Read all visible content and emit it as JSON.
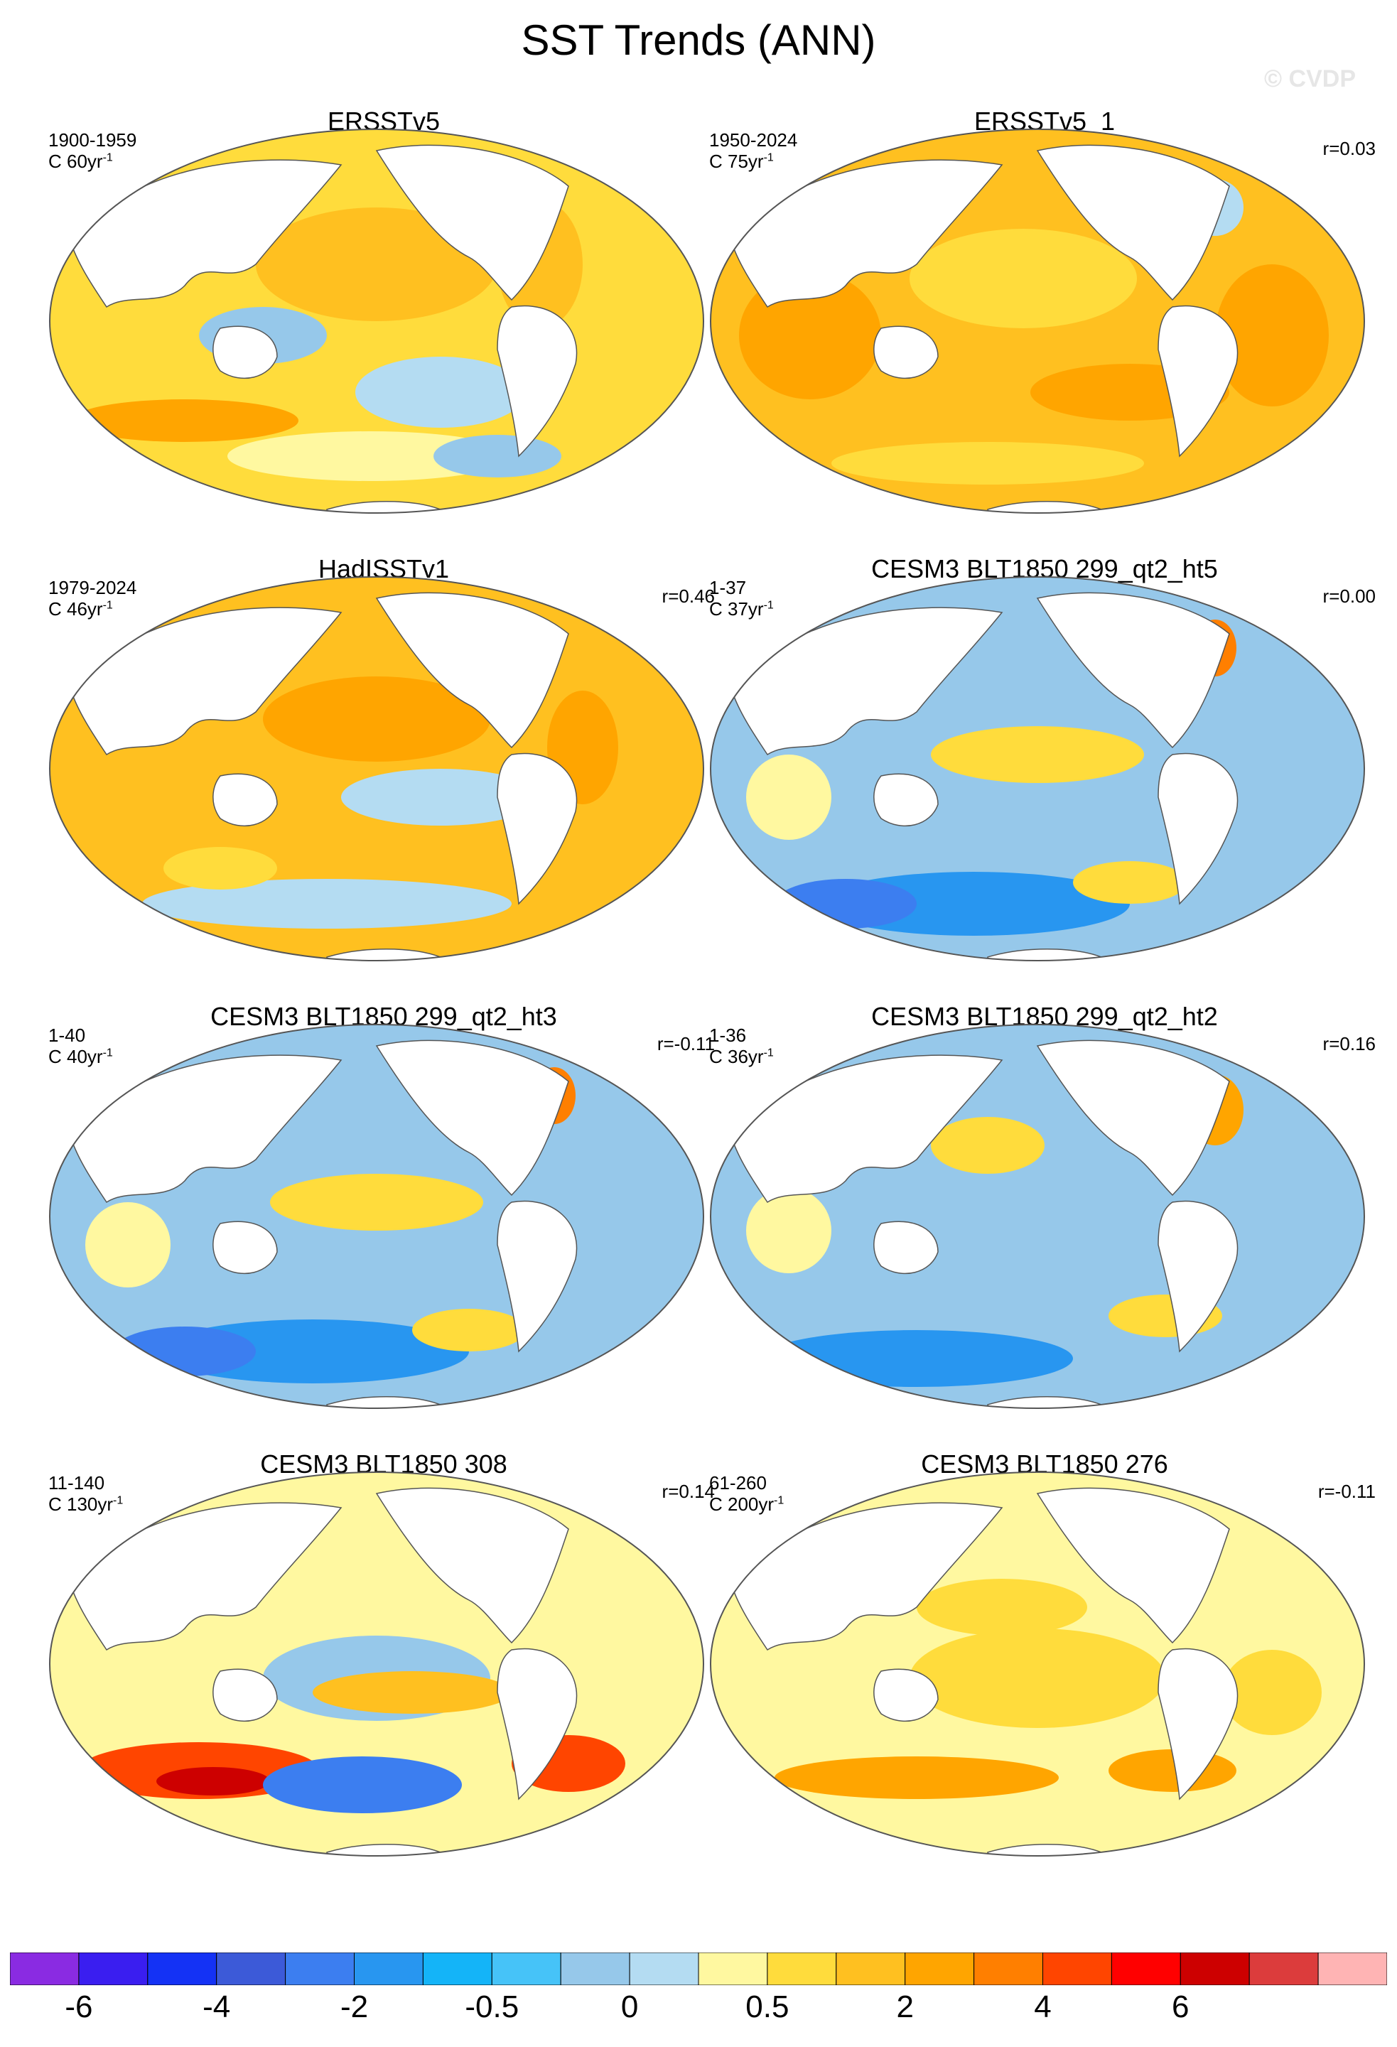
{
  "title": "SST Trends (ANN)",
  "watermark": "© CVDP",
  "chart_data": {
    "type": "heatmap",
    "variable": "SST",
    "season": "ANN",
    "projection": "global map",
    "panels": [
      {
        "title": "ERSSTv5",
        "period": "1900-1959",
        "units": "C 60yr",
        "units_exp": "-1",
        "corr": "",
        "pattern": "warm_obs_mixed"
      },
      {
        "title": "ERSSTv5_1",
        "period": "1950-2024",
        "units": "C 75yr",
        "units_exp": "-1",
        "corr": "r=0.03",
        "pattern": "warm_obs_strong"
      },
      {
        "title": "HadISSTv1",
        "period": "1979-2024",
        "units": "C 46yr",
        "units_exp": "-1",
        "corr": "r=0.46",
        "pattern": "warm_obs_cool_east_pacific"
      },
      {
        "title": "CESM3 BLT1850 299_qt2_ht5",
        "period": "1-37",
        "units": "C 37yr",
        "units_exp": "-1",
        "corr": "r=0.00",
        "pattern": "cool_model_tropical_warm"
      },
      {
        "title": "CESM3 BLT1850 299_qt2_ht3",
        "period": "1-40",
        "units": "C 40yr",
        "units_exp": "-1",
        "corr": "r=-0.11",
        "pattern": "cool_model_tropical_warm"
      },
      {
        "title": "CESM3 BLT1850 299_qt2_ht2",
        "period": "1-36",
        "units": "C 36yr",
        "units_exp": "-1",
        "corr": "r=0.16",
        "pattern": "cool_model"
      },
      {
        "title": "CESM3 BLT1850 308",
        "period": "11-140",
        "units": "C 130yr",
        "units_exp": "-1",
        "corr": "r=0.14",
        "pattern": "mixed_model_so_dipole"
      },
      {
        "title": "CESM3 BLT1850 276",
        "period": "61-260",
        "units": "C 200yr",
        "units_exp": "-1",
        "corr": "r=-0.11",
        "pattern": "mild_warm_model"
      }
    ],
    "colorbar": {
      "levels": [
        -6,
        -5,
        -4,
        -3,
        -2,
        -1,
        -0.5,
        -0.25,
        0,
        0.25,
        0.5,
        1,
        2,
        3,
        4,
        5,
        6,
        7
      ],
      "labels": [
        "-6",
        "-4",
        "-2",
        "-0.5",
        "0",
        "0.5",
        "2",
        "4",
        "6"
      ],
      "label_levels": [
        -6,
        -4,
        -2,
        -0.5,
        0,
        0.5,
        2,
        4,
        6
      ],
      "colors": [
        "#8a2be2",
        "#3a1ef0",
        "#1432f5",
        "#3c5ad8",
        "#3c7ef0",
        "#2896f0",
        "#14b4f8",
        "#46c3f8",
        "#96c8ea",
        "#b4dcf2",
        "#fff8a0",
        "#ffdc3c",
        "#ffc020",
        "#ffa500",
        "#ff7f00",
        "#ff4500",
        "#ff0000",
        "#cd0000",
        "#dc3c3c",
        "#ffb4b4"
      ]
    }
  }
}
